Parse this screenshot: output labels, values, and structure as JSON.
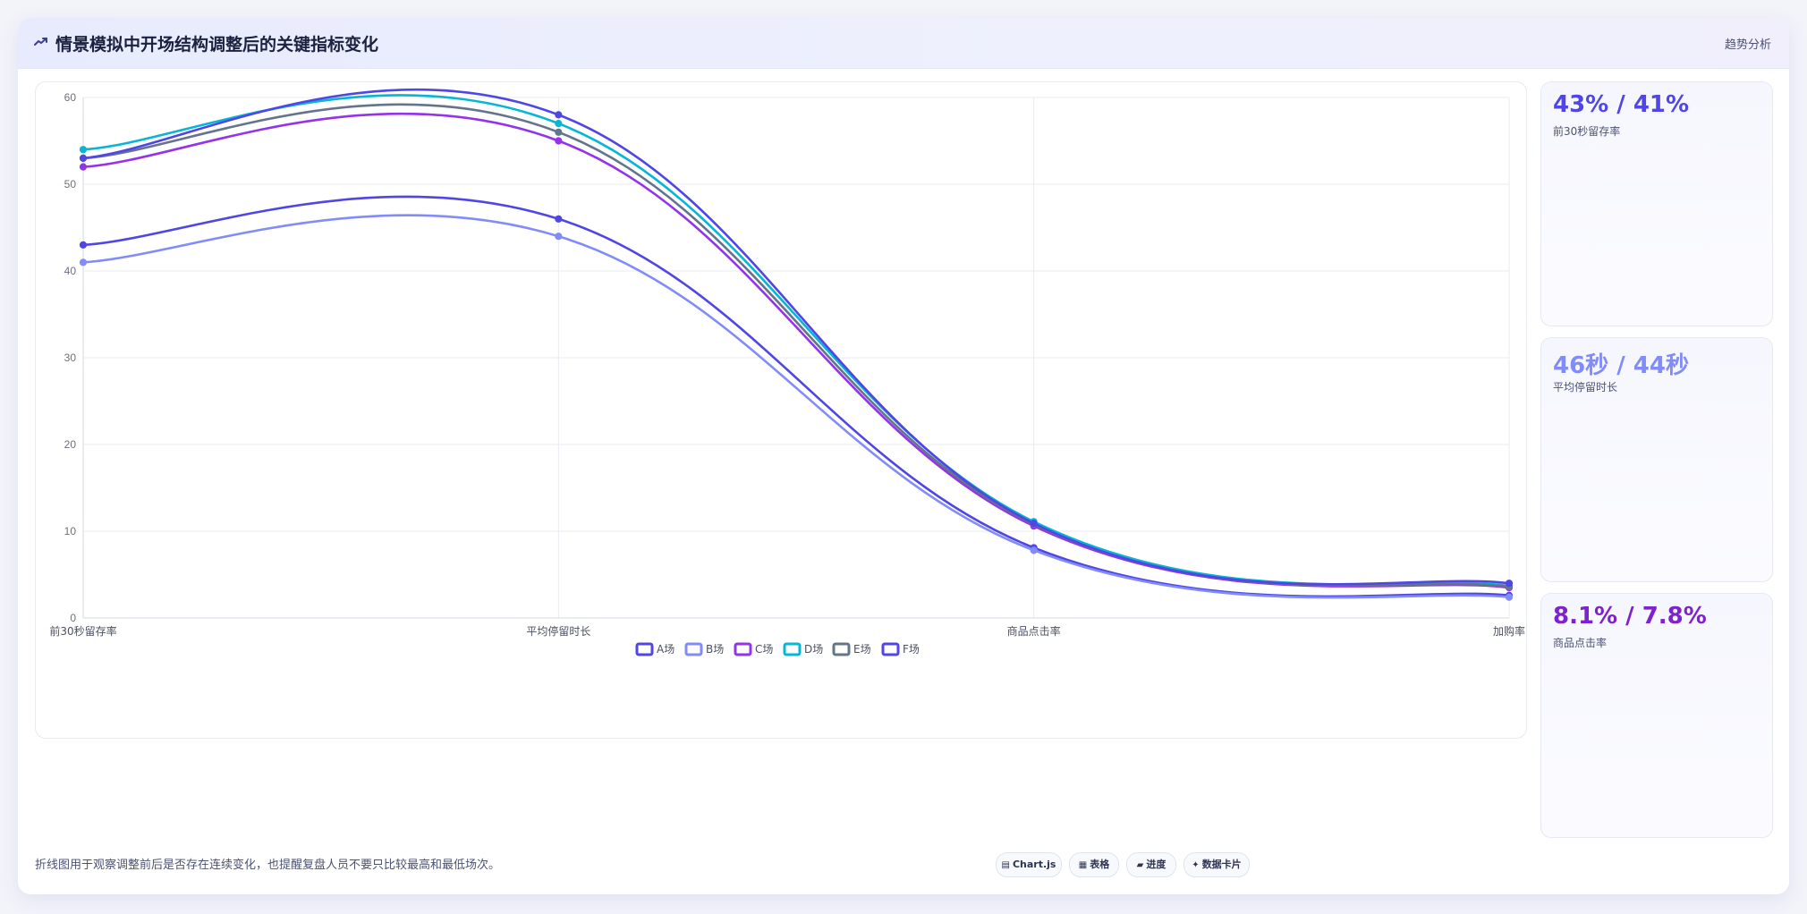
{
  "header": {
    "title": "情景模拟中开场结构调整后的关键指标变化",
    "tag": "趋势分析"
  },
  "kpis": [
    {
      "value": "43% / 41%",
      "label": "前30秒留存率",
      "color": "#4f46e5"
    },
    {
      "value": "46秒 / 44秒",
      "label": "平均停留时长",
      "color": "#818cf8"
    },
    {
      "value": "8.1% / 7.8%",
      "label": "商品点击率",
      "color": "#7e22ce"
    }
  ],
  "note": "折线图用于观察调整前后是否存在连续变化，也提醒复盘人员不要只比较最高和最低场次。",
  "chips": [
    {
      "glyph": "▤",
      "label": "Chart.js"
    },
    {
      "glyph": "▦",
      "label": "表格"
    },
    {
      "glyph": "▰",
      "label": "进度"
    },
    {
      "glyph": "✦",
      "label": "数据卡片"
    }
  ],
  "chart_data": {
    "type": "line",
    "categories": [
      "前30秒留存率",
      "平均停留时长",
      "商品点击率",
      "加购率"
    ],
    "ylim": [
      0,
      60
    ],
    "yticks": [
      0,
      10,
      20,
      30,
      40,
      50,
      60
    ],
    "grid": true,
    "legend": "bottom",
    "series": [
      {
        "name": "A场",
        "values": [
          43,
          46,
          8.1,
          2.6
        ],
        "color": "#4f46e5"
      },
      {
        "name": "B场",
        "values": [
          41,
          44,
          7.8,
          2.4
        ],
        "color": "#818cf8"
      },
      {
        "name": "C场",
        "values": [
          52,
          55,
          10.6,
          3.5
        ],
        "color": "#9333ea"
      },
      {
        "name": "D场",
        "values": [
          54,
          57,
          11.1,
          3.7
        ],
        "color": "#06b6d4"
      },
      {
        "name": "E场",
        "values": [
          53,
          56,
          10.8,
          3.6
        ],
        "color": "#64748b"
      },
      {
        "name": "F场",
        "values": [
          53,
          58,
          10.9,
          4.0
        ],
        "color": "#4f46e5"
      }
    ]
  }
}
